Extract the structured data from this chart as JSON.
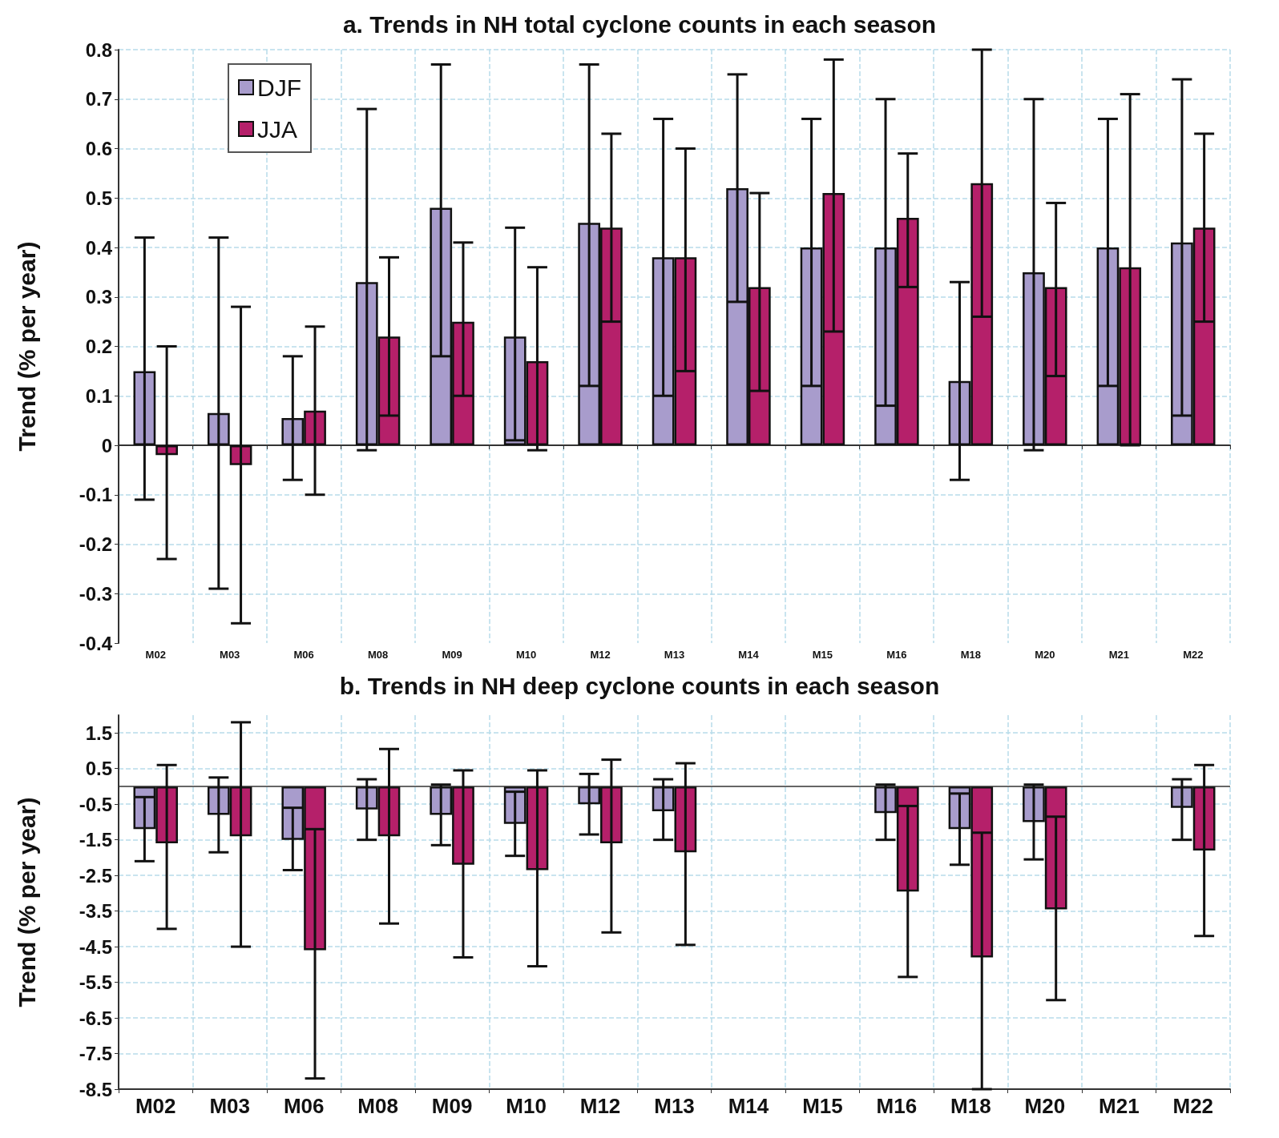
{
  "chart_data": [
    {
      "type": "bar",
      "title": "a. Trends in NH total cyclone counts in each season",
      "ylabel": "Trend (% per year)",
      "categories": [
        "M02",
        "M03",
        "M06",
        "M08",
        "M09",
        "M10",
        "M12",
        "M13",
        "M14",
        "M15",
        "M16",
        "M18",
        "M20",
        "M21",
        "M22"
      ],
      "series": [
        {
          "name": "DJF",
          "color": "#a89ccc",
          "values": [
            0.15,
            0.065,
            0.055,
            0.33,
            0.48,
            0.22,
            0.45,
            0.38,
            0.52,
            0.4,
            0.4,
            0.13,
            0.35,
            0.4,
            0.41
          ],
          "errors": [
            [
              -0.11,
              0.42
            ],
            [
              -0.29,
              0.42
            ],
            [
              -0.07,
              0.18
            ],
            [
              -0.01,
              0.68
            ],
            [
              0.18,
              0.77
            ],
            [
              0.01,
              0.44
            ],
            [
              0.12,
              0.77
            ],
            [
              0.1,
              0.66
            ],
            [
              0.29,
              0.75
            ],
            [
              0.12,
              0.66
            ],
            [
              0.08,
              0.7
            ],
            [
              -0.07,
              0.33
            ],
            [
              -0.01,
              0.7
            ],
            [
              0.12,
              0.66
            ],
            [
              0.06,
              0.74
            ]
          ]
        },
        {
          "name": "JJA",
          "color": "#b5206a",
          "values": [
            -0.02,
            -0.04,
            0.07,
            0.22,
            0.25,
            0.17,
            0.44,
            0.38,
            0.32,
            0.51,
            0.46,
            0.53,
            0.32,
            0.36,
            0.44
          ],
          "errors": [
            [
              -0.23,
              0.2
            ],
            [
              -0.36,
              0.28
            ],
            [
              -0.1,
              0.24
            ],
            [
              0.06,
              0.38
            ],
            [
              0.1,
              0.41
            ],
            [
              -0.01,
              0.36
            ],
            [
              0.25,
              0.63
            ],
            [
              0.15,
              0.6
            ],
            [
              0.11,
              0.51
            ],
            [
              0.23,
              0.78
            ],
            [
              0.32,
              0.59
            ],
            [
              0.26,
              0.8
            ],
            [
              0.14,
              0.49
            ],
            [
              0.0,
              0.71
            ],
            [
              0.25,
              0.63
            ]
          ]
        }
      ],
      "ylim": [
        -0.4,
        0.8
      ],
      "yticks": [
        -0.4,
        -0.3,
        -0.2,
        -0.1,
        0,
        0.1,
        0.2,
        0.3,
        0.4,
        0.5,
        0.6,
        0.7,
        0.8
      ],
      "grid": true,
      "legend": "top left"
    },
    {
      "type": "bar",
      "title": "b. Trends in NH deep cyclone counts in each season",
      "ylabel": "Trend (% per year)",
      "categories": [
        "M02",
        "M03",
        "M06",
        "M08",
        "M09",
        "M10",
        "M12",
        "M13",
        "M14",
        "M15",
        "M16",
        "M18",
        "M20",
        "M21",
        "M22"
      ],
      "series": [
        {
          "color": "#a89ccc",
          "values": [
            -1.2,
            -0.8,
            -1.5,
            -0.65,
            -0.8,
            -1.05,
            -0.5,
            -0.7,
            null,
            null,
            -0.75,
            -1.2,
            -1.0,
            null,
            -0.6
          ],
          "errors": [
            [
              -2.1,
              -0.3
            ],
            [
              -1.85,
              0.25
            ],
            [
              -2.35,
              -0.6
            ],
            [
              -1.5,
              0.2
            ],
            [
              -1.65,
              0.05
            ],
            [
              -1.95,
              -0.15
            ],
            [
              -1.35,
              0.35
            ],
            [
              -1.5,
              0.2
            ],
            null,
            null,
            [
              -1.5,
              0.05
            ],
            [
              -2.2,
              -0.2
            ],
            [
              -2.05,
              0.05
            ],
            null,
            [
              -1.5,
              0.2
            ]
          ]
        },
        {
          "color": "#b5206a",
          "values": [
            -1.6,
            -1.4,
            -4.6,
            -1.4,
            -2.2,
            -2.35,
            -1.6,
            -1.85,
            null,
            null,
            -2.95,
            -4.8,
            -3.45,
            null,
            -1.8
          ],
          "errors": [
            [
              -4.0,
              0.6
            ],
            [
              -4.5,
              1.8
            ],
            [
              -8.2,
              -1.2
            ],
            [
              -3.85,
              1.05
            ],
            [
              -4.8,
              0.45
            ],
            [
              -5.05,
              0.45
            ],
            [
              -4.1,
              0.75
            ],
            [
              -4.45,
              0.65
            ],
            null,
            null,
            [
              -5.35,
              -0.55
            ],
            [
              -8.5,
              -1.3
            ],
            [
              -6.0,
              -0.85
            ],
            null,
            [
              -4.2,
              0.6
            ]
          ]
        }
      ],
      "ylim": [
        -8.5,
        2
      ],
      "yticks": [
        -8.5,
        -7.5,
        -6.5,
        -5.5,
        -4.5,
        -3.5,
        -2.5,
        -1.5,
        -0.5,
        0.5,
        1.5
      ],
      "grid": true,
      "ref_lines": [
        {
          "axis": "y",
          "value": 0,
          "label": null,
          "color": "#333333"
        }
      ]
    }
  ]
}
